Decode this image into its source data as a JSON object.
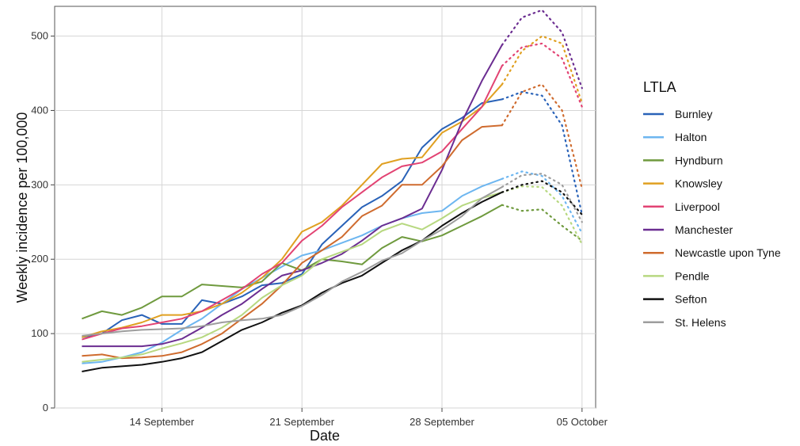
{
  "chart_data": {
    "type": "line",
    "xlabel": "Date",
    "ylabel": "Weekly incidence per 100,000",
    "x_type": "date",
    "x_range": [
      "2020-09-09",
      "2020-10-05"
    ],
    "x_ticks": [
      {
        "date": "2020-09-14",
        "label": "14 September"
      },
      {
        "date": "2020-09-21",
        "label": "21 September"
      },
      {
        "date": "2020-09-28",
        "label": "28 September"
      },
      {
        "date": "2020-10-05",
        "label": "05 October"
      }
    ],
    "ylim": [
      0,
      540
    ],
    "y_ticks": [
      0,
      100,
      200,
      300,
      400,
      500
    ],
    "grid": true,
    "legend": {
      "title": "LTLA",
      "position": "right"
    },
    "x_dates": [
      "2020-09-10",
      "2020-09-11",
      "2020-09-12",
      "2020-09-13",
      "2020-09-14",
      "2020-09-15",
      "2020-09-16",
      "2020-09-17",
      "2020-09-18",
      "2020-09-19",
      "2020-09-20",
      "2020-09-21",
      "2020-09-22",
      "2020-09-23",
      "2020-09-24",
      "2020-09-25",
      "2020-09-26",
      "2020-09-27",
      "2020-09-28",
      "2020-09-29",
      "2020-09-30",
      "2020-10-01"
    ],
    "forecast_dates": [
      "2020-10-01",
      "2020-10-02",
      "2020-10-03",
      "2020-10-04",
      "2020-10-05"
    ],
    "series": [
      {
        "name": "Burnley",
        "color": "#2962b8",
        "values": [
          95,
          100,
          118,
          125,
          113,
          113,
          145,
          140,
          150,
          165,
          168,
          180,
          220,
          245,
          270,
          285,
          305,
          350,
          375,
          390,
          410,
          415
        ],
        "forecast": [
          415,
          425,
          420,
          380,
          260
        ]
      },
      {
        "name": "Halton",
        "color": "#6db6f0",
        "values": [
          60,
          62,
          68,
          75,
          88,
          105,
          120,
          140,
          160,
          175,
          190,
          205,
          212,
          222,
          232,
          245,
          255,
          262,
          265,
          285,
          298,
          308
        ],
        "forecast": [
          308,
          318,
          312,
          285,
          235
        ]
      },
      {
        "name": "Hyndburn",
        "color": "#6f9a3e",
        "values": [
          120,
          130,
          125,
          135,
          150,
          150,
          166,
          164,
          162,
          170,
          195,
          185,
          200,
          197,
          193,
          215,
          230,
          224,
          232,
          245,
          258,
          273
        ],
        "forecast": [
          273,
          265,
          267,
          245,
          225
        ]
      },
      {
        "name": "Knowsley",
        "color": "#e0a021",
        "values": [
          95,
          103,
          108,
          115,
          125,
          125,
          130,
          140,
          155,
          175,
          200,
          237,
          250,
          272,
          300,
          328,
          335,
          337,
          370,
          385,
          405,
          435
        ],
        "forecast": [
          435,
          480,
          500,
          490,
          410
        ]
      },
      {
        "name": "Liverpool",
        "color": "#e24373",
        "values": [
          92,
          100,
          107,
          110,
          115,
          120,
          130,
          145,
          160,
          180,
          195,
          225,
          245,
          270,
          290,
          310,
          325,
          330,
          345,
          375,
          405,
          460
        ],
        "forecast": [
          460,
          485,
          490,
          470,
          405
        ]
      },
      {
        "name": "Manchester",
        "color": "#6b2d91",
        "values": [
          83,
          83,
          83,
          83,
          86,
          93,
          108,
          125,
          140,
          160,
          178,
          185,
          195,
          207,
          225,
          245,
          255,
          268,
          320,
          385,
          440,
          488
        ],
        "forecast": [
          488,
          525,
          535,
          505,
          430
        ]
      },
      {
        "name": "Newcastle upon Tyne",
        "color": "#cf6b2e",
        "values": [
          70,
          72,
          67,
          68,
          70,
          75,
          86,
          100,
          120,
          140,
          165,
          195,
          212,
          230,
          258,
          272,
          300,
          300,
          325,
          360,
          378,
          380
        ],
        "forecast": [
          380,
          425,
          435,
          400,
          295
        ]
      },
      {
        "name": "Pendle",
        "color": "#b7d880",
        "values": [
          62,
          65,
          68,
          72,
          80,
          87,
          95,
          108,
          125,
          148,
          165,
          178,
          200,
          210,
          220,
          238,
          248,
          240,
          255,
          272,
          282,
          290
        ],
        "forecast": [
          290,
          298,
          297,
          272,
          220
        ]
      },
      {
        "name": "Sefton",
        "color": "#111111",
        "values": [
          49,
          54,
          56,
          58,
          62,
          67,
          75,
          90,
          105,
          115,
          128,
          138,
          155,
          168,
          178,
          195,
          212,
          225,
          245,
          262,
          277,
          290
        ],
        "forecast": [
          290,
          300,
          305,
          290,
          260
        ]
      },
      {
        "name": "St. Helens",
        "color": "#9d9d9d",
        "values": [
          97,
          100,
          103,
          105,
          106,
          107,
          110,
          115,
          118,
          120,
          125,
          137,
          152,
          170,
          183,
          198,
          208,
          225,
          240,
          258,
          282,
          297
        ],
        "forecast": [
          297,
          313,
          315,
          300,
          250
        ]
      }
    ]
  }
}
